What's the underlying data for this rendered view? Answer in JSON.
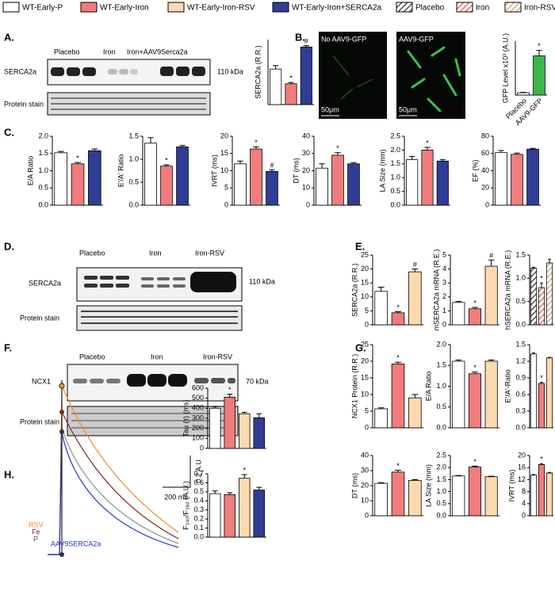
{
  "legend": [
    {
      "label": "WT-Early-P",
      "color": "#ffffff"
    },
    {
      "label": "WT-Early-Iron",
      "color": "#f07c7c"
    },
    {
      "label": "WT-Early-Iron-RSV",
      "color": "#fdd9b0"
    },
    {
      "label": "WT-Early-Iron+SERCA2a",
      "color": "#2f3d94"
    },
    {
      "label": "Placebo",
      "color": "#ffffff",
      "hatch": true
    },
    {
      "label": "Iron",
      "color": "#e05555",
      "hatch": true
    },
    {
      "label": "Iron-RSV",
      "color": "#c8a46a",
      "hatch": true
    }
  ],
  "panels": {
    "A": {
      "label": "A.",
      "lanes": [
        "Placebo",
        "Iron",
        "Iron+AAV9Serca2a"
      ],
      "rows": [
        "SERCA2a",
        "Protein stain"
      ],
      "size": "110 kDa"
    },
    "B": {
      "label": "B.",
      "images": [
        "No AAV9-GFP",
        "AAV9-GFP"
      ],
      "scale": [
        "50μm",
        "50μm"
      ]
    },
    "C": {
      "label": "C."
    },
    "D": {
      "label": "D.",
      "lanes": [
        "Placebo",
        "Iron",
        "Iron-RSV"
      ],
      "rows": [
        "SERCA2a",
        "Protein stain"
      ],
      "size": "110 kDa"
    },
    "E": {
      "label": "E."
    },
    "F": {
      "label": "F.",
      "lanes": [
        "Placebo",
        "Iron",
        "Iron-RSV"
      ],
      "rows": [
        "NCX1",
        "Protein stain"
      ],
      "size": "70 kDa"
    },
    "G": {
      "label": "G."
    },
    "H": {
      "label": "H.",
      "traces": [
        "RSV",
        "Fe",
        "P",
        "AAV9SERCA2a"
      ],
      "scale_y": "0.2 A.U",
      "scale_x": "200 ms"
    }
  },
  "chart_data": [
    {
      "type": "bar",
      "ylabel": "SERCA2a (R.R.)",
      "ylim": [
        0,
        15
      ],
      "values": [
        8.2,
        4.8,
        13.3
      ],
      "errors": [
        0.8,
        0.3,
        0.3
      ],
      "colors": [
        "#ffffff",
        "#f07c7c",
        "#2f3d94"
      ],
      "annotations": [
        null,
        "*",
        "#"
      ]
    },
    {
      "type": "bar",
      "ylabel": "GFP Level x10³ (A.U.)",
      "categories": [
        "Placebo",
        "AAV9-GFP"
      ],
      "ylim": [
        0,
        7
      ],
      "values": [
        0.3,
        5.1
      ],
      "errors": [
        0.05,
        0.7
      ],
      "colors": [
        "#ffffff",
        "#3cb54a"
      ],
      "annotations": [
        null,
        "*"
      ]
    },
    {
      "type": "bar",
      "ylabel": "E/A Ratio",
      "ylim": [
        0,
        2
      ],
      "yticks": [
        {
          "value": 0,
          "label": "0.0"
        },
        0.5,
        {
          "value": 1,
          "label": "1.0"
        },
        1.5,
        {
          "value": 2,
          "label": "2.0"
        }
      ],
      "values": [
        1.52,
        1.2,
        1.58
      ],
      "errors": [
        0.04,
        0.04,
        0.05
      ],
      "colors": [
        "#ffffff",
        "#f07c7c",
        "#2f3d94"
      ],
      "annotations": [
        null,
        "*",
        null
      ]
    },
    {
      "type": "bar",
      "ylabel": "E'/A' Ratio",
      "ylim": [
        0,
        1.5
      ],
      "yticks": [
        {
          "value": 0,
          "label": "0.0"
        },
        0.5,
        {
          "value": 1,
          "label": "1.0"
        },
        1.5
      ],
      "values": [
        1.35,
        0.85,
        1.27
      ],
      "errors": [
        0.12,
        0.03,
        0.03
      ],
      "colors": [
        "#ffffff",
        "#f07c7c",
        "#2f3d94"
      ],
      "annotations": [
        null,
        "*",
        null
      ]
    },
    {
      "type": "bar",
      "ylabel": "IVRT (ms)",
      "ylim": [
        0,
        20
      ],
      "yticks": [
        0,
        5,
        10,
        15,
        20
      ],
      "values": [
        12,
        16.3,
        9.8
      ],
      "errors": [
        0.8,
        0.6,
        0.5
      ],
      "colors": [
        "#ffffff",
        "#f07c7c",
        "#2f3d94"
      ],
      "annotations": [
        null,
        "*",
        "#"
      ]
    },
    {
      "type": "bar",
      "ylabel": "DT (ms)",
      "ylim": [
        0,
        40
      ],
      "yticks": [
        0,
        10,
        20,
        30,
        40
      ],
      "values": [
        21.5,
        29,
        24
      ],
      "errors": [
        2.5,
        1.5,
        0.7
      ],
      "colors": [
        "#ffffff",
        "#f07c7c",
        "#2f3d94"
      ],
      "annotations": [
        null,
        "*",
        null
      ]
    },
    {
      "type": "bar",
      "ylabel": "LA Size (mm)",
      "ylim": [
        0,
        2.5
      ],
      "yticks": [
        {
          "value": 0,
          "label": "0.0"
        },
        0.5,
        {
          "value": 1,
          "label": "1.0"
        },
        1.5,
        {
          "value": 2,
          "label": "2.0"
        },
        2.5
      ],
      "values": [
        1.65,
        2.0,
        1.6
      ],
      "errors": [
        0.12,
        0.1,
        0.05
      ],
      "colors": [
        "#ffffff",
        "#f07c7c",
        "#2f3d94"
      ],
      "annotations": [
        null,
        "*",
        null
      ]
    },
    {
      "type": "bar",
      "ylabel": "EF (%)",
      "ylim": [
        0,
        80
      ],
      "yticks": [
        0,
        20,
        40,
        60,
        80
      ],
      "values": [
        61,
        59,
        65
      ],
      "errors": [
        2.5,
        1.5,
        1
      ],
      "colors": [
        "#ffffff",
        "#f07c7c",
        "#2f3d94"
      ]
    },
    {
      "type": "bar",
      "ylabel": "SERCA2a (R.R.)",
      "ylim": [
        0,
        25
      ],
      "yticks": [
        0,
        5,
        10,
        15,
        20,
        25
      ],
      "values": [
        12,
        4.3,
        19
      ],
      "errors": [
        1.5,
        0.4,
        1
      ],
      "colors": [
        "#ffffff",
        "#f07c7c",
        "#fdd9b0"
      ],
      "annotations": [
        null,
        "*",
        "#"
      ]
    },
    {
      "type": "bar",
      "ylabel": "mSERCA2a mRNA (R.E.)",
      "ylim": [
        0,
        5
      ],
      "yticks": [
        0,
        1,
        2,
        3,
        4,
        5
      ],
      "values": [
        1.6,
        1.15,
        4.2
      ],
      "errors": [
        0.08,
        0.1,
        0.45
      ],
      "colors": [
        "#ffffff",
        "#f07c7c",
        "#fdd9b0"
      ],
      "annotations": [
        null,
        "*",
        "#"
      ]
    },
    {
      "type": "bar",
      "ylabel": "hSERCA2a mRNA (R.E.)",
      "ylim": [
        0,
        1.5
      ],
      "yticks": [
        {
          "value": 0,
          "label": "0.0"
        },
        0.5,
        {
          "value": 1,
          "label": "1.0"
        },
        1.5
      ],
      "values": [
        1.22,
        0.8,
        1.33
      ],
      "errors": [
        0.02,
        0.1,
        0.08
      ],
      "colors": [
        "#ffffff",
        "#e05555",
        "#c8a46a"
      ],
      "hatch": true,
      "annotations": [
        null,
        "*",
        null
      ]
    },
    {
      "type": "bar",
      "ylabel": "NCX1 Protein (R.R.)",
      "ylim": [
        0,
        25
      ],
      "yticks": [
        0,
        5,
        10,
        15,
        20,
        25
      ],
      "values": [
        5.7,
        19.2,
        9.0
      ],
      "errors": [
        0.3,
        0.5,
        1.0
      ],
      "colors": [
        "#ffffff",
        "#f07c7c",
        "#fdd9b0"
      ],
      "annotations": [
        null,
        "*",
        null
      ]
    },
    {
      "type": "bar",
      "ylabel": "E/A Ratio",
      "ylim": [
        0,
        2
      ],
      "yticks": [
        {
          "value": 0,
          "label": "0.0"
        },
        0.5,
        {
          "value": 1,
          "label": "1.0"
        },
        1.5,
        {
          "value": 2,
          "label": "2.0"
        }
      ],
      "values": [
        1.6,
        1.3,
        1.6
      ],
      "errors": [
        0.03,
        0.04,
        0.03
      ],
      "colors": [
        "#ffffff",
        "#f07c7c",
        "#fdd9b0"
      ],
      "annotations": [
        null,
        "*",
        null
      ]
    },
    {
      "type": "bar",
      "ylabel": "E'/A'-Ratio",
      "ylim": [
        0,
        1.5
      ],
      "yticks": [
        {
          "value": 0,
          "label": "0.0"
        },
        0.3,
        0.6,
        0.9,
        1.2,
        1.5
      ],
      "values": [
        1.33,
        0.8,
        1.26
      ],
      "errors": [
        0.02,
        0.02,
        0.01
      ],
      "colors": [
        "#ffffff",
        "#f07c7c",
        "#fdd9b0"
      ],
      "annotations": [
        null,
        "*",
        null
      ]
    },
    {
      "type": "bar",
      "ylabel": "Tau (τ) (ms)",
      "ylim": [
        0,
        600
      ],
      "yticks": [
        0,
        100,
        200,
        300,
        400,
        500,
        600
      ],
      "values": [
        400,
        510,
        345,
        305
      ],
      "errors": [
        15,
        30,
        15,
        40
      ],
      "colors": [
        "#ffffff",
        "#f07c7c",
        "#fdd9b0",
        "#2f3d94"
      ],
      "annotations": [
        null,
        "*",
        null,
        null
      ]
    },
    {
      "type": "bar",
      "ylabel": "F₃₄₀/F₃₈₀ (A.U.)",
      "ylim": [
        0,
        0.7
      ],
      "yticks": [
        {
          "value": 0,
          "label": "0.0"
        },
        0.1,
        0.2,
        0.3,
        0.4,
        0.5,
        0.6,
        0.7
      ],
      "values": [
        0.48,
        0.47,
        0.65,
        0.52
      ],
      "errors": [
        0.03,
        0.02,
        0.04,
        0.03
      ],
      "colors": [
        "#ffffff",
        "#f07c7c",
        "#fdd9b0",
        "#2f3d94"
      ],
      "annotations": [
        null,
        null,
        "*",
        null
      ]
    },
    {
      "type": "bar",
      "ylabel": "DT (ms)",
      "ylim": [
        0,
        40
      ],
      "yticks": [
        0,
        10,
        20,
        30,
        40
      ],
      "values": [
        21.5,
        29,
        23.5
      ],
      "errors": [
        0.5,
        1.2,
        0.5
      ],
      "colors": [
        "#ffffff",
        "#f07c7c",
        "#fdd9b0"
      ],
      "annotations": [
        null,
        "*",
        null
      ]
    },
    {
      "type": "bar",
      "ylabel": "LA Size (mm)",
      "ylim": [
        0,
        2.5
      ],
      "yticks": [
        {
          "value": 0,
          "label": "0.0"
        },
        0.5,
        {
          "value": 1,
          "label": "1.0"
        },
        1.5,
        {
          "value": 2,
          "label": "2.0"
        },
        2.5
      ],
      "values": [
        1.65,
        2.02,
        1.62
      ],
      "errors": [
        0.02,
        0.04,
        0.02
      ],
      "colors": [
        "#ffffff",
        "#f07c7c",
        "#fdd9b0"
      ],
      "annotations": [
        null,
        "*",
        null
      ]
    },
    {
      "type": "bar",
      "ylabel": "IVRT (ms)",
      "ylim": [
        0,
        20
      ],
      "yticks": [
        0,
        4,
        8,
        12,
        16,
        20
      ],
      "values": [
        13.5,
        17,
        14.2
      ],
      "errors": [
        0.2,
        0.3,
        0.2
      ],
      "colors": [
        "#ffffff",
        "#f07c7c",
        "#fdd9b0"
      ],
      "annotations": [
        null,
        "*",
        null
      ]
    }
  ]
}
